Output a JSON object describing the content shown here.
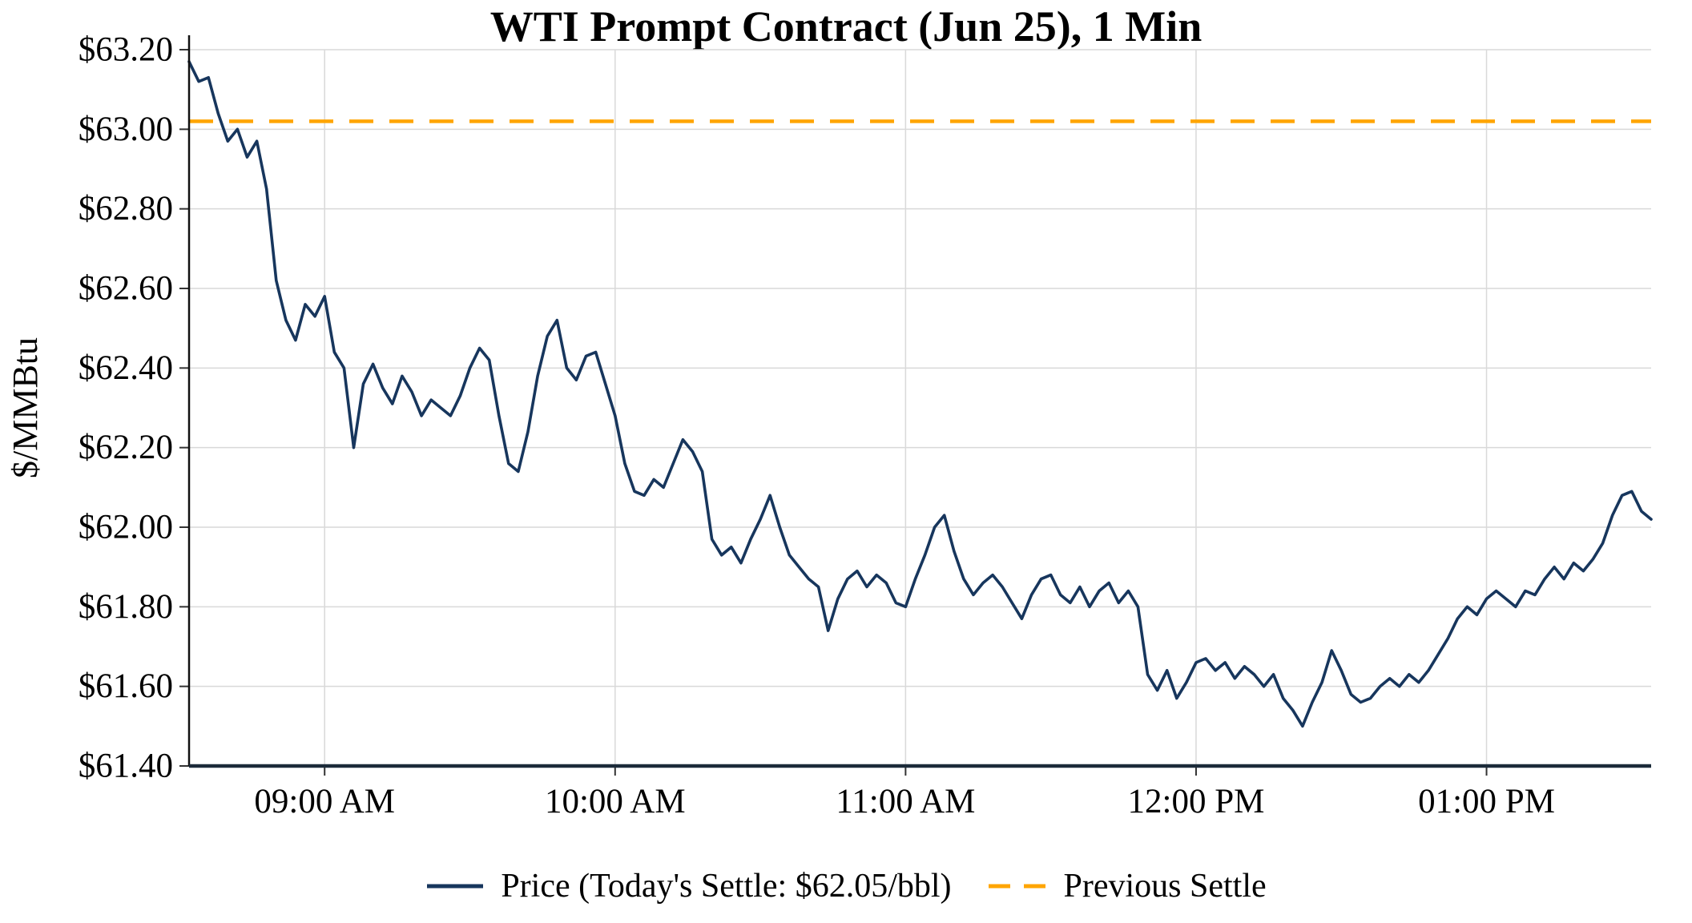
{
  "chart_data": {
    "type": "line",
    "title": "WTI Prompt Contract (Jun 25), 1 Min",
    "ylabel": "$/MMBtu",
    "xlabel": "",
    "ylim": [
      61.4,
      63.2
    ],
    "y_tick_step": 0.2,
    "y_tick_prefix": "$",
    "grid": "on",
    "legend_position": "bottom-center",
    "price_color": "#17365d",
    "settle_color": "#FFA500",
    "grid_color": "#d9d9d9",
    "axis_color": "#1c2b3a",
    "previous_settle": 63.02,
    "todays_settle": 62.05,
    "x_range_minutes": [
      512,
      814
    ],
    "x_ticks": [
      {
        "label": "09:00 AM",
        "minutes": 540
      },
      {
        "label": "10:00 AM",
        "minutes": 600
      },
      {
        "label": "11:00 AM",
        "minutes": 660
      },
      {
        "label": "12:00 PM",
        "minutes": 720
      },
      {
        "label": "01:00 PM",
        "minutes": 780
      }
    ],
    "series": [
      {
        "name": "Price (Today's Settle: $62.05/bbl)",
        "type": "line",
        "start_minutes": 512,
        "step_minutes": 2,
        "values": [
          63.17,
          63.12,
          63.13,
          63.04,
          62.97,
          63.0,
          62.93,
          62.97,
          62.85,
          62.62,
          62.52,
          62.47,
          62.56,
          62.53,
          62.58,
          62.44,
          62.4,
          62.2,
          62.36,
          62.41,
          62.35,
          62.31,
          62.38,
          62.34,
          62.28,
          62.32,
          62.3,
          62.28,
          62.33,
          62.4,
          62.45,
          62.42,
          62.28,
          62.16,
          62.14,
          62.24,
          62.38,
          62.48,
          62.52,
          62.4,
          62.37,
          62.43,
          62.44,
          62.36,
          62.28,
          62.16,
          62.09,
          62.08,
          62.12,
          62.1,
          62.16,
          62.22,
          62.19,
          62.14,
          61.97,
          61.93,
          61.95,
          61.91,
          61.97,
          62.02,
          62.08,
          62.0,
          61.93,
          61.9,
          61.87,
          61.85,
          61.74,
          61.82,
          61.87,
          61.89,
          61.85,
          61.88,
          61.86,
          61.81,
          61.8,
          61.87,
          61.93,
          62.0,
          62.03,
          61.94,
          61.87,
          61.83,
          61.86,
          61.88,
          61.85,
          61.81,
          61.77,
          61.83,
          61.87,
          61.88,
          61.83,
          61.81,
          61.85,
          61.8,
          61.84,
          61.86,
          61.81,
          61.84,
          61.8,
          61.63,
          61.59,
          61.64,
          61.57,
          61.61,
          61.66,
          61.67,
          61.64,
          61.66,
          61.62,
          61.65,
          61.63,
          61.6,
          61.63,
          61.57,
          61.54,
          61.5,
          61.56,
          61.61,
          61.69,
          61.64,
          61.58,
          61.56,
          61.57,
          61.6,
          61.62,
          61.6,
          61.63,
          61.61,
          61.64,
          61.68,
          61.72,
          61.77,
          61.8,
          61.78,
          61.82,
          61.84,
          61.82,
          61.8,
          61.84,
          61.83,
          61.87,
          61.9,
          61.87,
          61.91,
          61.89,
          61.92,
          61.96,
          62.03,
          62.08,
          62.09,
          62.04,
          62.02
        ]
      },
      {
        "name": "Previous Settle",
        "type": "hline",
        "style": "dashed",
        "value": 63.02
      }
    ],
    "legend": {
      "price_label": "Price (Today's Settle: $62.05/bbl)",
      "previous_settle_label": "Previous Settle"
    }
  }
}
